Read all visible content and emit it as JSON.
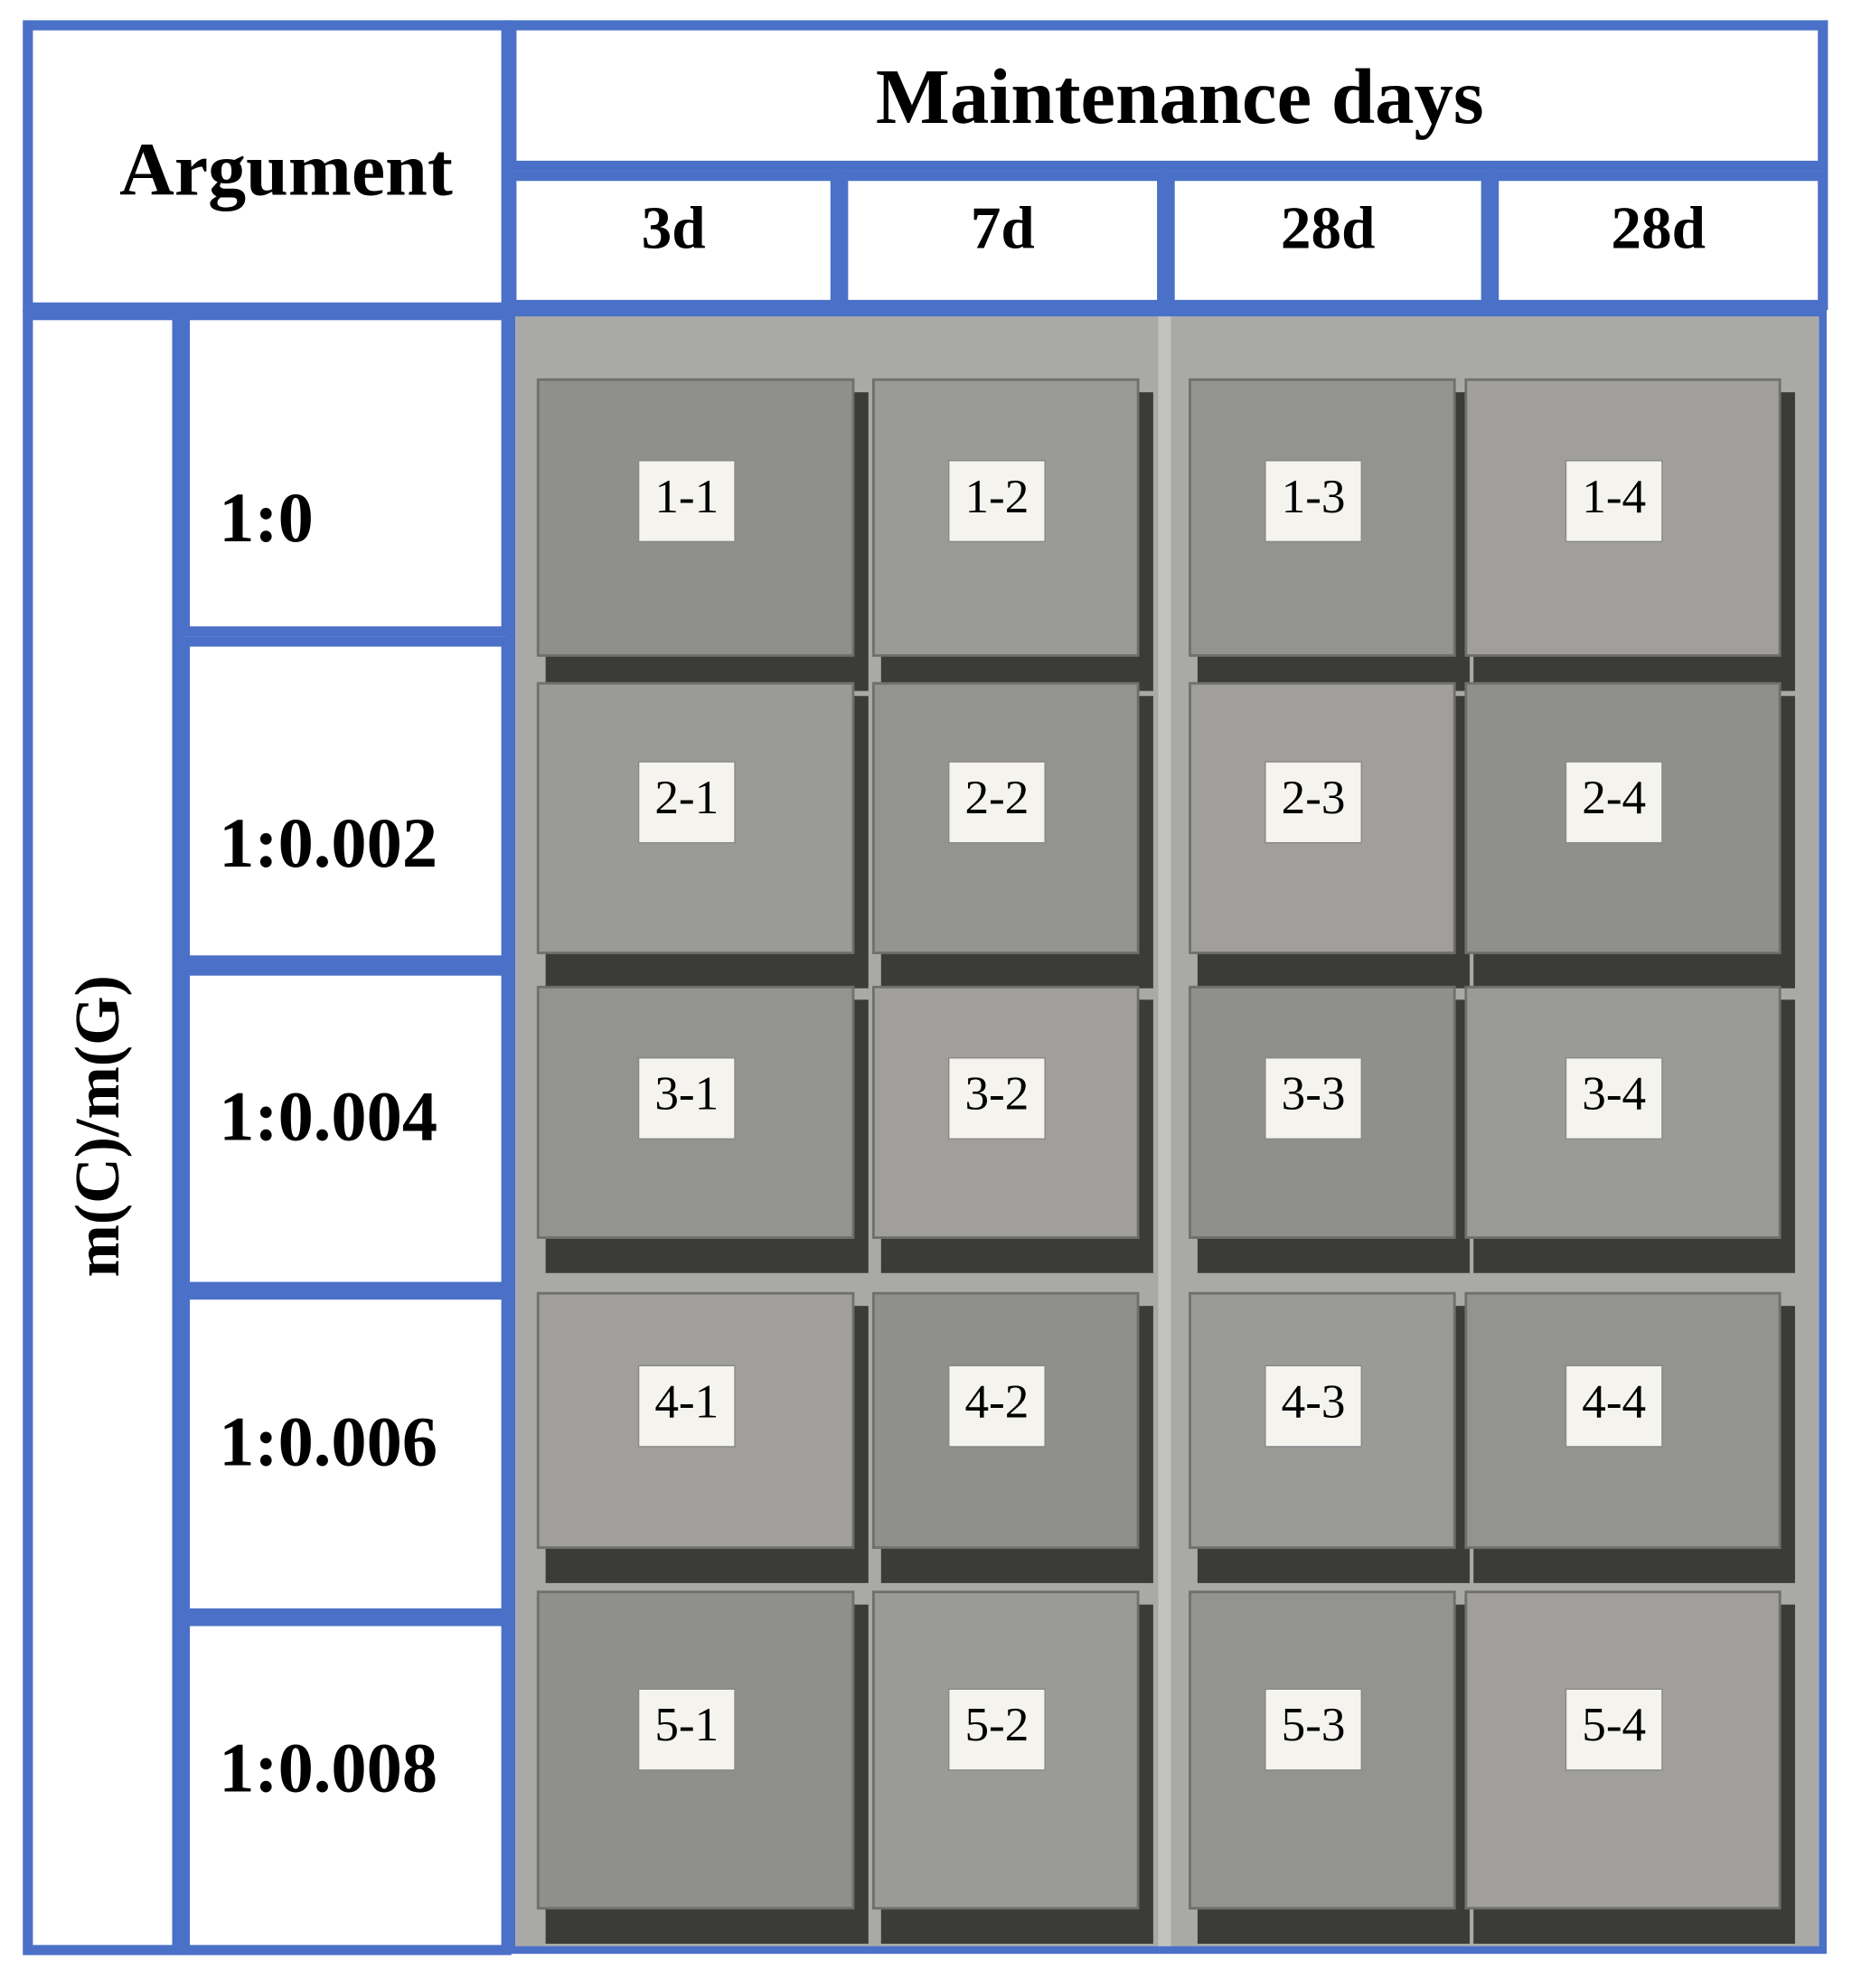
{
  "header": {
    "corner": "Argument",
    "group": "Maintenance days",
    "days": [
      "3d",
      "7d",
      "28d",
      "28d"
    ]
  },
  "rows": {
    "axis_label": "m(C)/m(G)",
    "ratios": [
      "1:0",
      "1:0.002",
      "1:0.004",
      "1:0.006",
      "1:0.008"
    ]
  },
  "photo": {
    "labels": [
      [
        "1-1",
        "1-2",
        "1-3",
        "1-4"
      ],
      [
        "2-1",
        "2-2",
        "2-3",
        "2-4"
      ],
      [
        "3-1",
        "3-2",
        "3-3",
        "3-4"
      ],
      [
        "4-1",
        "4-2",
        "4-3",
        "4-4"
      ],
      [
        "5-1",
        "5-2",
        "5-3",
        "5-4"
      ]
    ]
  }
}
